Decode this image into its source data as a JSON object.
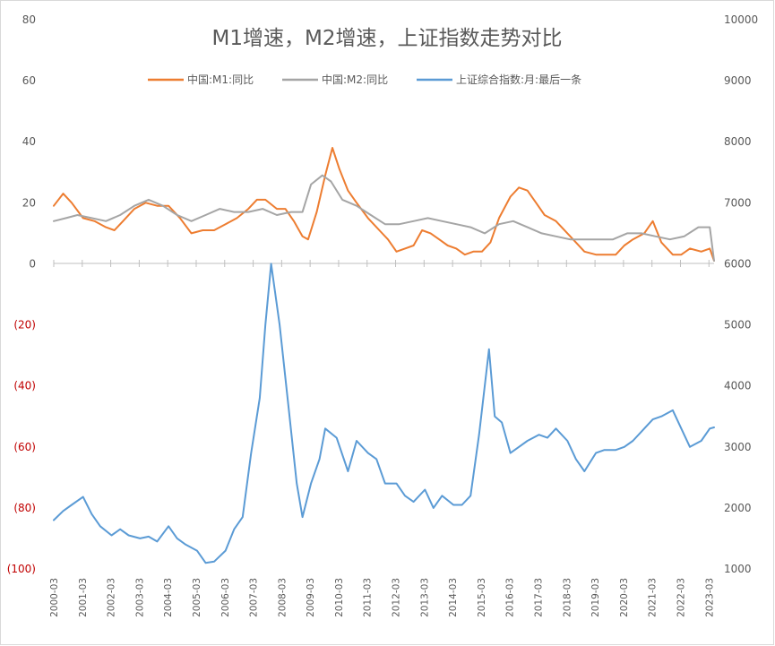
{
  "chart_data": {
    "type": "line",
    "title": "M1增速，M2增速，上证指数走势对比",
    "left_axis": {
      "ylim": [
        -100,
        80
      ],
      "ticks": [
        {
          "value": 80,
          "label": "80"
        },
        {
          "value": 60,
          "label": "60"
        },
        {
          "value": 40,
          "label": "40"
        },
        {
          "value": 20,
          "label": "20"
        },
        {
          "value": 0,
          "label": "0"
        },
        {
          "value": -20,
          "label": "(20)"
        },
        {
          "value": -40,
          "label": "(40)"
        },
        {
          "value": -60,
          "label": "(60)"
        },
        {
          "value": -80,
          "label": "(80)"
        },
        {
          "value": -100,
          "label": "(100)"
        }
      ]
    },
    "right_axis": {
      "ylim": [
        1000,
        10000
      ],
      "ticks": [
        {
          "value": 10000,
          "label": "10000"
        },
        {
          "value": 9000,
          "label": "9000"
        },
        {
          "value": 8000,
          "label": "8000"
        },
        {
          "value": 7000,
          "label": "7000"
        },
        {
          "value": 6000,
          "label": "6000"
        },
        {
          "value": 5000,
          "label": "5000"
        },
        {
          "value": 4000,
          "label": "4000"
        },
        {
          "value": 3000,
          "label": "3000"
        },
        {
          "value": 2000,
          "label": "2000"
        },
        {
          "value": 1000,
          "label": "1000"
        }
      ]
    },
    "x_ticks": [
      "2000-03",
      "2001-03",
      "2002-03",
      "2003-03",
      "2004-03",
      "2005-03",
      "2006-03",
      "2007-03",
      "2008-03",
      "2009-03",
      "2010-03",
      "2011-03",
      "2012-03",
      "2013-03",
      "2014-03",
      "2015-03",
      "2016-03",
      "2017-03",
      "2018-03",
      "2019-03",
      "2020-03",
      "2021-03",
      "2022-03",
      "2023-03"
    ],
    "legend_position": "top",
    "series": [
      {
        "name": "中国:M1:同比",
        "axis": "left",
        "color": "#ed7d31",
        "x": [
          2000.17,
          2000.5,
          2000.8,
          2001.2,
          2001.6,
          2002.0,
          2002.3,
          2002.6,
          2003.0,
          2003.4,
          2003.8,
          2004.2,
          2004.6,
          2005.0,
          2005.4,
          2005.8,
          2006.2,
          2006.6,
          2007.0,
          2007.3,
          2007.6,
          2008.0,
          2008.3,
          2008.6,
          2008.9,
          2009.1,
          2009.4,
          2009.7,
          2009.95,
          2010.2,
          2010.5,
          2010.8,
          2011.2,
          2011.6,
          2011.9,
          2012.2,
          2012.5,
          2012.8,
          2013.1,
          2013.4,
          2013.7,
          2014.0,
          2014.3,
          2014.6,
          2014.9,
          2015.2,
          2015.5,
          2015.8,
          2016.2,
          2016.5,
          2016.8,
          2017.1,
          2017.4,
          2017.8,
          2018.2,
          2018.5,
          2018.8,
          2019.2,
          2019.5,
          2019.9,
          2020.2,
          2020.5,
          2020.9,
          2021.2,
          2021.5,
          2021.9,
          2022.2,
          2022.5,
          2022.9,
          2023.2,
          2023.35
        ],
        "values": [
          19,
          23,
          20,
          15,
          14,
          12,
          11,
          14,
          18,
          20,
          19,
          19,
          15,
          10,
          11,
          11,
          13,
          15,
          18,
          21,
          21,
          18,
          18,
          14,
          9,
          8,
          17,
          29,
          38,
          31,
          24,
          20,
          15,
          11,
          8,
          4,
          5,
          6,
          11,
          10,
          8,
          6,
          5,
          3,
          4,
          4,
          7,
          15,
          22,
          25,
          24,
          20,
          16,
          14,
          10,
          7,
          4,
          3,
          3,
          3,
          6,
          8,
          10,
          14,
          7,
          3,
          3,
          5,
          4,
          5,
          1
        ]
      },
      {
        "name": "中国:M2:同比",
        "axis": "left",
        "color": "#a5a5a5",
        "x": [
          2000.17,
          2000.6,
          2001.0,
          2001.5,
          2002.0,
          2002.5,
          2003.0,
          2003.5,
          2004.0,
          2004.5,
          2005.0,
          2005.5,
          2006.0,
          2006.5,
          2007.0,
          2007.5,
          2008.0,
          2008.5,
          2008.9,
          2009.2,
          2009.6,
          2009.9,
          2010.3,
          2010.8,
          2011.3,
          2011.8,
          2012.3,
          2012.8,
          2013.3,
          2013.8,
          2014.3,
          2014.8,
          2015.3,
          2015.8,
          2016.3,
          2016.8,
          2017.3,
          2017.8,
          2018.3,
          2018.8,
          2019.3,
          2019.8,
          2020.3,
          2020.8,
          2021.3,
          2021.8,
          2022.3,
          2022.8,
          2023.2,
          2023.35
        ],
        "values": [
          14,
          15,
          16,
          15,
          14,
          16,
          19,
          21,
          19,
          16,
          14,
          16,
          18,
          17,
          17,
          18,
          16,
          17,
          17,
          26,
          29,
          27,
          21,
          19,
          16,
          13,
          13,
          14,
          15,
          14,
          13,
          12,
          10,
          13,
          14,
          12,
          10,
          9,
          8,
          8,
          8,
          8,
          10,
          10,
          9,
          8,
          9,
          12,
          12,
          1
        ]
      },
      {
        "name": "上证综合指数:月:最后一条",
        "axis": "right",
        "color": "#5b9bd5",
        "x": [
          2000.17,
          2000.5,
          2000.8,
          2001.2,
          2001.5,
          2001.8,
          2002.2,
          2002.5,
          2002.8,
          2003.2,
          2003.5,
          2003.8,
          2004.2,
          2004.5,
          2004.8,
          2005.2,
          2005.5,
          2005.8,
          2006.2,
          2006.5,
          2006.8,
          2007.1,
          2007.4,
          2007.6,
          2007.8,
          2008.1,
          2008.4,
          2008.7,
          2008.9,
          2009.2,
          2009.5,
          2009.7,
          2010.1,
          2010.5,
          2010.8,
          2011.2,
          2011.5,
          2011.8,
          2012.2,
          2012.5,
          2012.8,
          2013.2,
          2013.5,
          2013.8,
          2014.2,
          2014.5,
          2014.8,
          2015.1,
          2015.45,
          2015.65,
          2015.9,
          2016.2,
          2016.5,
          2016.8,
          2017.2,
          2017.5,
          2017.8,
          2018.2,
          2018.5,
          2018.8,
          2019.2,
          2019.5,
          2019.9,
          2020.2,
          2020.5,
          2020.9,
          2021.2,
          2021.5,
          2021.9,
          2022.2,
          2022.5,
          2022.9,
          2023.2,
          2023.35
        ],
        "values": [
          1800,
          1950,
          2050,
          2180,
          1900,
          1700,
          1550,
          1650,
          1550,
          1500,
          1530,
          1450,
          1700,
          1500,
          1400,
          1300,
          1100,
          1120,
          1300,
          1650,
          1850,
          2900,
          3800,
          5000,
          6000,
          5000,
          3700,
          2400,
          1850,
          2400,
          2800,
          3300,
          3150,
          2600,
          3100,
          2900,
          2800,
          2400,
          2400,
          2200,
          2100,
          2300,
          2000,
          2200,
          2050,
          2050,
          2200,
          3200,
          4600,
          3500,
          3400,
          2900,
          3000,
          3100,
          3200,
          3150,
          3300,
          3100,
          2800,
          2600,
          2900,
          2950,
          2950,
          3000,
          3100,
          3300,
          3450,
          3500,
          3600,
          3300,
          3000,
          3100,
          3300,
          3320
        ]
      }
    ]
  }
}
